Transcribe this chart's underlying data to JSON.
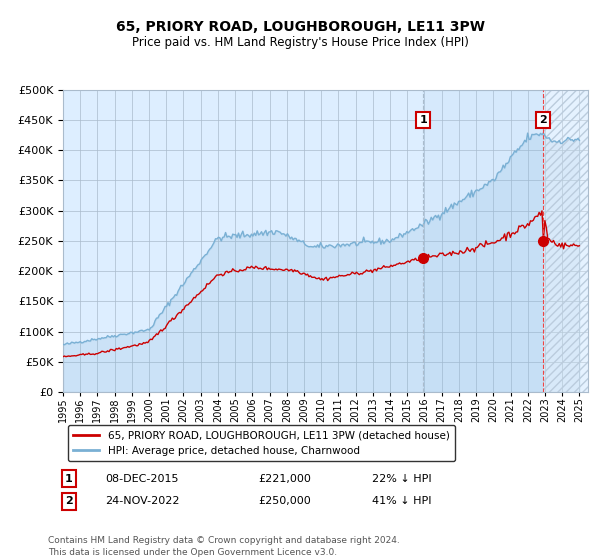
{
  "title": "65, PRIORY ROAD, LOUGHBOROUGH, LE11 3PW",
  "subtitle": "Price paid vs. HM Land Registry's House Price Index (HPI)",
  "ylim": [
    0,
    500000
  ],
  "yticks": [
    0,
    50000,
    100000,
    150000,
    200000,
    250000,
    300000,
    350000,
    400000,
    450000,
    500000
  ],
  "xlim_start": 1995.0,
  "xlim_end": 2025.5,
  "legend_entries": [
    "65, PRIORY ROAD, LOUGHBOROUGH, LE11 3PW (detached house)",
    "HPI: Average price, detached house, Charnwood"
  ],
  "legend_colors": [
    "#cc0000",
    "#7ab0d4"
  ],
  "transaction1_date": 2015.93,
  "transaction1_value": 221000,
  "transaction2_date": 2022.9,
  "transaction2_value": 250000,
  "ann1_date_str": "08-DEC-2015",
  "ann1_price_str": "£221,000",
  "ann1_hpi_str": "22% ↓ HPI",
  "ann2_date_str": "24-NOV-2022",
  "ann2_price_str": "£250,000",
  "ann2_hpi_str": "41% ↓ HPI",
  "footer": "Contains HM Land Registry data © Crown copyright and database right 2024.\nThis data is licensed under the Open Government Licence v3.0.",
  "hpi_color": "#7ab0d4",
  "price_color": "#cc0000",
  "bg_color": "#ddeeff",
  "grid_color": "#aabbcc",
  "vline1_color": "#aabbcc",
  "vline2_color": "#ee4444",
  "title_fontsize": 10,
  "subtitle_fontsize": 8.5
}
